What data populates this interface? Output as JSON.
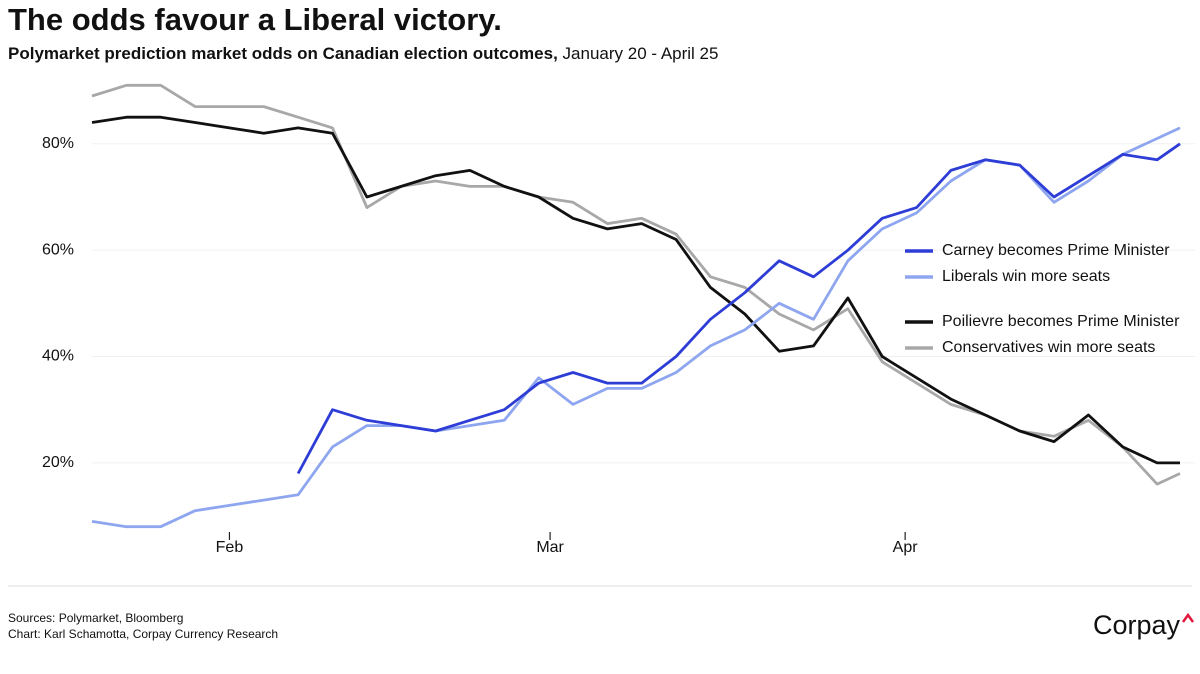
{
  "chart_data": {
    "type": "line",
    "title": "The odds favour a Liberal victory.",
    "subtitle": [
      "Polymarket prediction market odds on Canadian election outcomes,",
      "January 20 - April 25"
    ],
    "x": [
      "01-20",
      "01-23",
      "01-26",
      "01-29",
      "02-01",
      "02-04",
      "02-07",
      "02-10",
      "02-13",
      "02-16",
      "02-19",
      "02-22",
      "02-25",
      "02-28",
      "03-03",
      "03-06",
      "03-09",
      "03-12",
      "03-15",
      "03-18",
      "03-21",
      "03-24",
      "03-27",
      "03-30",
      "04-02",
      "04-05",
      "04-08",
      "04-11",
      "04-14",
      "04-17",
      "04-20",
      "04-23",
      "04-25"
    ],
    "xlim": [
      "01-20",
      "04-25"
    ],
    "xticks": [
      {
        "value": "02-01",
        "label": "Feb"
      },
      {
        "value": "03-01",
        "label": "Mar"
      },
      {
        "value": "04-01",
        "label": "Apr"
      }
    ],
    "ylim": [
      7,
      92
    ],
    "yticks": [
      {
        "value": 20,
        "label": "20%"
      },
      {
        "value": 40,
        "label": "40%"
      },
      {
        "value": 60,
        "label": "60%"
      },
      {
        "value": 80,
        "label": "80%"
      }
    ],
    "grid": true,
    "legend": "right",
    "series": [
      {
        "name": "Carney becomes Prime Minister",
        "color": "#2d3dd6",
        "values": [
          null,
          null,
          null,
          null,
          null,
          null,
          18,
          30,
          28,
          27,
          26,
          28,
          30,
          35,
          37,
          35,
          35,
          40,
          47,
          52,
          58,
          55,
          60,
          66,
          68,
          75,
          77,
          76,
          70,
          74,
          78,
          77,
          80
        ]
      },
      {
        "name": "Liberals win more seats",
        "color": "#8ea6ef",
        "values": [
          9,
          8,
          8,
          11,
          12,
          13,
          14,
          23,
          27,
          27,
          26,
          27,
          28,
          36,
          31,
          34,
          34,
          37,
          42,
          45,
          50,
          47,
          58,
          64,
          67,
          73,
          77,
          76,
          69,
          73,
          78,
          81,
          83
        ]
      },
      {
        "name": "Poilievre becomes Prime Minister",
        "color": "#111111",
        "values": [
          84,
          85,
          85,
          84,
          83,
          82,
          83,
          82,
          70,
          72,
          74,
          75,
          72,
          70,
          66,
          64,
          65,
          62,
          53,
          48,
          41,
          42,
          51,
          40,
          36,
          32,
          29,
          26,
          24,
          29,
          23,
          20,
          20
        ]
      },
      {
        "name": "Conservatives win more seats",
        "color": "#a8a8a8",
        "values": [
          89,
          91,
          91,
          87,
          87,
          87,
          85,
          83,
          68,
          72,
          73,
          72,
          72,
          70,
          69,
          65,
          66,
          63,
          55,
          53,
          48,
          45,
          49,
          39,
          35,
          31,
          29,
          26,
          25,
          28,
          23,
          16,
          18
        ]
      }
    ],
    "footer": {
      "sources": "Sources: Polymarket, Bloomberg",
      "credit": "Chart: Karl Schamotta, Corpay Currency Research",
      "logo": "Corpay"
    }
  }
}
